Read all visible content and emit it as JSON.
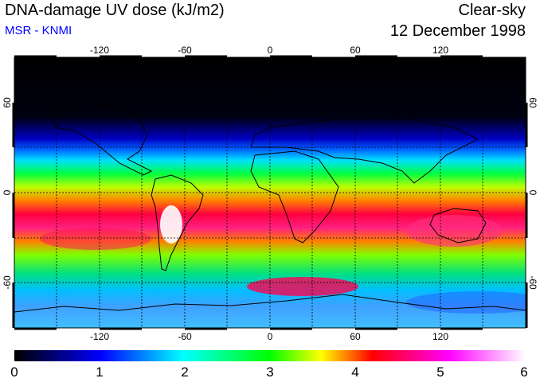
{
  "title": "DNA-damage UV dose (kJ/m2)",
  "subtitle": "MSR - KNMI",
  "condition": "Clear-sky",
  "date": "12 December 1998",
  "map": {
    "lon_ticks": [
      "-120",
      "-60",
      "0",
      "60",
      "120"
    ],
    "lat_ticks": [
      "60",
      "0",
      "-60"
    ],
    "projection": "equirectangular",
    "graticule": "dotted 30-degree grid",
    "coastlines": true
  },
  "colorbar": {
    "min": 0,
    "max": 6,
    "labels": [
      "0",
      "1",
      "2",
      "3",
      "4",
      "5",
      "6"
    ],
    "colors": [
      "#000000",
      "#0000ff",
      "#00ffff",
      "#00ff00",
      "#ffff00",
      "#ff0000",
      "#ff00ff",
      "#ffffff"
    ]
  },
  "colors": {
    "subtitle": "#0000ff",
    "text": "#000000"
  }
}
